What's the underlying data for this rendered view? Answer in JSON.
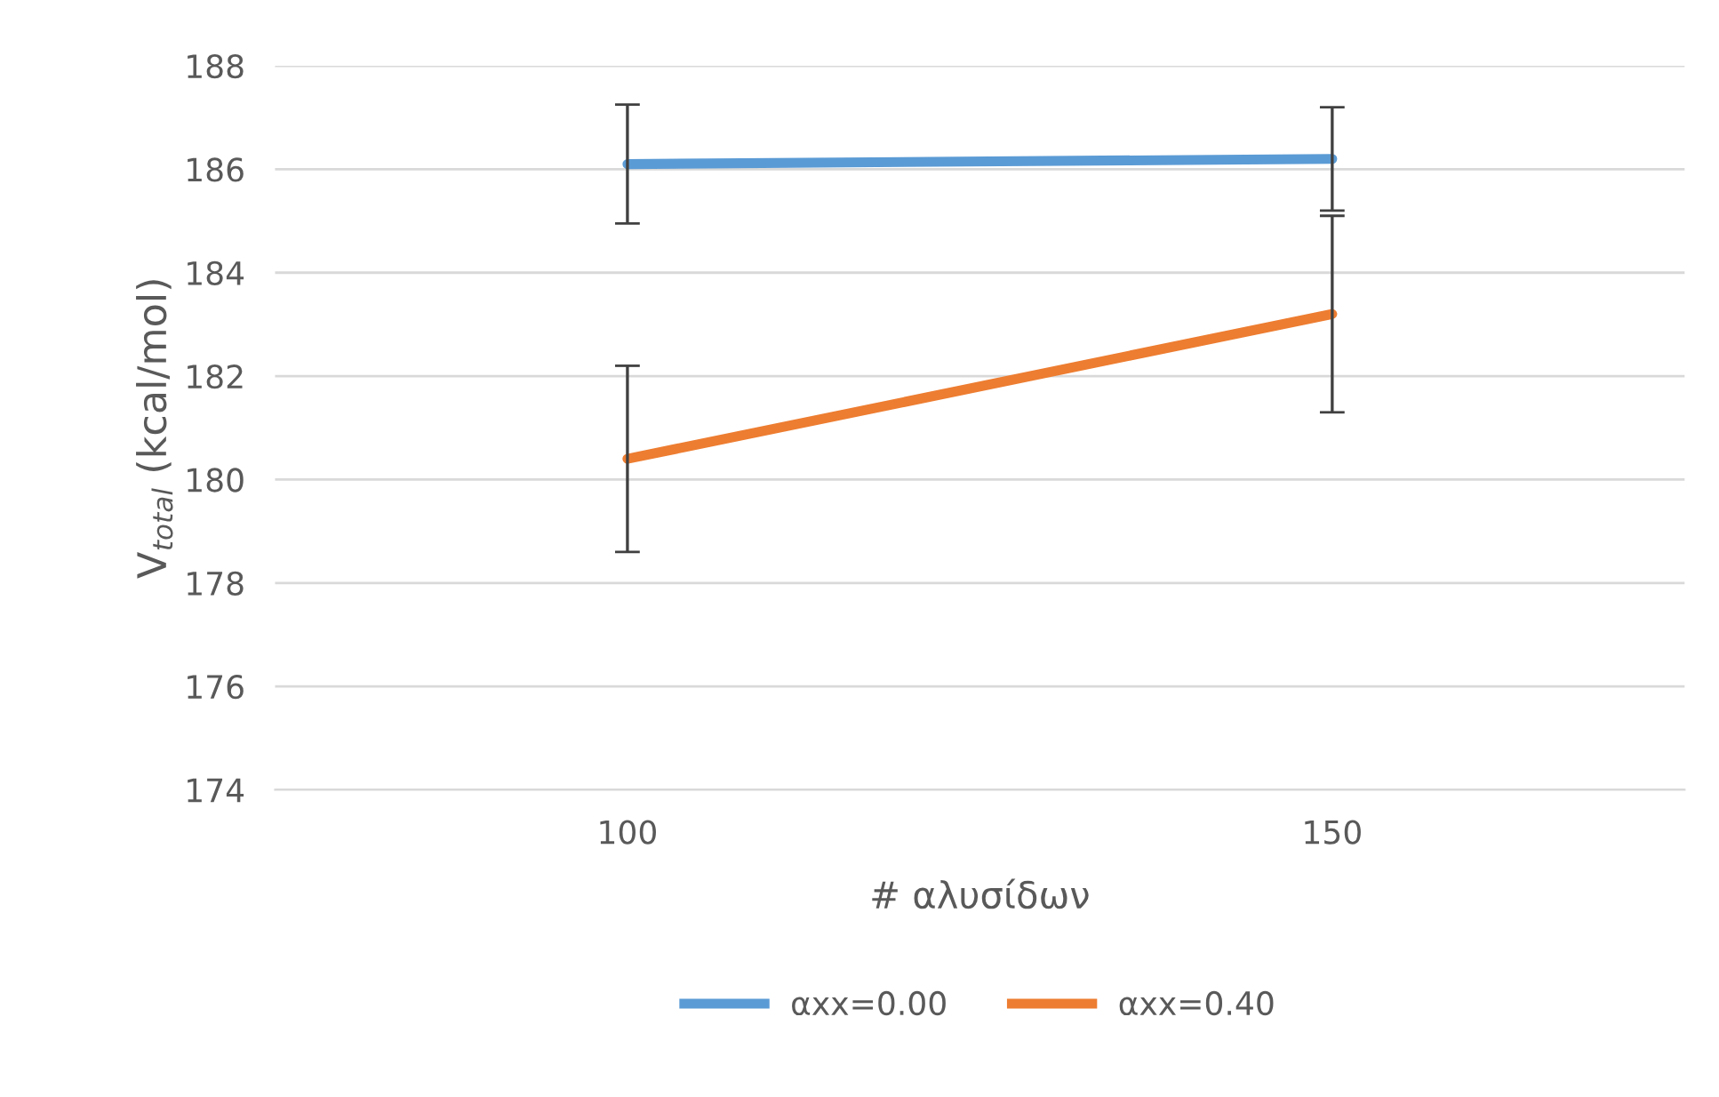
{
  "chart_data": {
    "type": "line",
    "xlabel": "# αλυσίδων",
    "ylabel": "V$_{total}$ (kcal/mol)",
    "categories": [
      "100",
      "150"
    ],
    "series": [
      {
        "name": "αxx=0.00",
        "color": "#5b9bd5",
        "values": [
          186.1,
          186.2
        ],
        "errors": [
          1.15,
          1.0
        ]
      },
      {
        "name": "αxx=0.40",
        "color": "#ed7d31",
        "values": [
          180.4,
          183.2
        ],
        "errors": [
          1.8,
          1.9
        ]
      }
    ],
    "ylim": [
      174,
      188
    ],
    "yticks": [
      174,
      176,
      178,
      180,
      182,
      184,
      186,
      188
    ],
    "grid": "y",
    "legend": "bottom",
    "marker": "none",
    "line_style": "solid"
  }
}
